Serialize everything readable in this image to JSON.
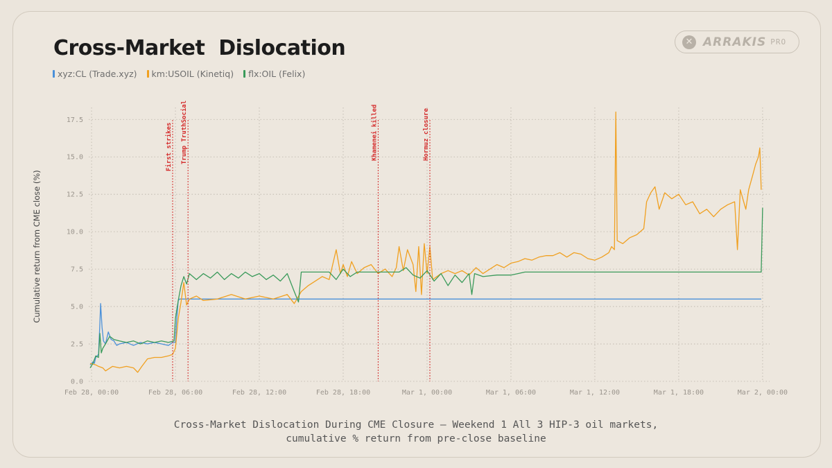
{
  "title": "Cross-Market  Dislocation",
  "brand": {
    "name": "ARRAKIS",
    "tier": "PRO",
    "icon": "close-x-icon"
  },
  "legend": [
    {
      "label": "xyz:CL (Trade.xyz)",
      "color": "#4a90d9"
    },
    {
      "label": "km:USOIL (Kinetiq)",
      "color": "#f0a020"
    },
    {
      "label": "flx:OIL (Felix)",
      "color": "#3a9a5a"
    }
  ],
  "caption": {
    "line1": "Cross-Market Dislocation During CME Closure — Weekend 1 All 3 HIP-3 oil markets,",
    "line2": "cumulative % return from pre-close baseline"
  },
  "chart_data": {
    "type": "line",
    "title": "Cross-Market  Dislocation",
    "xlabel": "",
    "ylabel": "Cumulative return from CME close (%)",
    "xlim": [
      -0.2,
      48.5
    ],
    "ylim": [
      0,
      18.3
    ],
    "x_unit": "hours since Feb 28, 00:00",
    "x_ticks": [
      {
        "t": 0,
        "label": "Feb 28, 00:00"
      },
      {
        "t": 6,
        "label": "Feb 28, 06:00"
      },
      {
        "t": 12,
        "label": "Feb 28, 12:00"
      },
      {
        "t": 18,
        "label": "Feb 28, 18:00"
      },
      {
        "t": 24,
        "label": "Mar 1, 00:00"
      },
      {
        "t": 30,
        "label": "Mar 1, 06:00"
      },
      {
        "t": 36,
        "label": "Mar 1, 12:00"
      },
      {
        "t": 42,
        "label": "Mar 1, 18:00"
      },
      {
        "t": 48,
        "label": "Mar 2, 00:00"
      }
    ],
    "y_ticks": [
      0.0,
      2.5,
      5.0,
      7.5,
      10.0,
      12.5,
      15.0,
      17.5
    ],
    "y_tick_labels": [
      "0.0",
      "2.5",
      "5.0",
      "7.5",
      "10.0",
      "12.5",
      "15.0",
      "17.5"
    ],
    "grid": true,
    "legend_position": "top-left",
    "events": [
      {
        "t": 5.8,
        "label": "First strikes"
      },
      {
        "t": 6.9,
        "label": "Trump TruthSocial"
      },
      {
        "t": 20.5,
        "label": "Khamenei killed"
      },
      {
        "t": 24.2,
        "label": "Hormuz closure"
      }
    ],
    "series": [
      {
        "name": "xyz:CL (Trade.xyz)",
        "color": "#4a90d9",
        "points": [
          [
            -0.1,
            1.1
          ],
          [
            0.1,
            1.3
          ],
          [
            0.2,
            1.2
          ],
          [
            0.3,
            1.6
          ],
          [
            0.5,
            1.8
          ],
          [
            0.6,
            3.9
          ],
          [
            0.65,
            5.2
          ],
          [
            0.75,
            3.6
          ],
          [
            0.85,
            2.7
          ],
          [
            1.0,
            2.5
          ],
          [
            1.2,
            3.3
          ],
          [
            1.4,
            2.8
          ],
          [
            1.6,
            2.7
          ],
          [
            1.8,
            2.4
          ],
          [
            2.0,
            2.5
          ],
          [
            2.5,
            2.6
          ],
          [
            3.0,
            2.4
          ],
          [
            3.5,
            2.6
          ],
          [
            4.0,
            2.5
          ],
          [
            4.5,
            2.6
          ],
          [
            5.0,
            2.5
          ],
          [
            5.5,
            2.4
          ],
          [
            5.8,
            2.6
          ],
          [
            6.0,
            2.6
          ],
          [
            6.1,
            4.2
          ],
          [
            6.2,
            5.4
          ],
          [
            6.3,
            5.5
          ],
          [
            10,
            5.5
          ],
          [
            20,
            5.5
          ],
          [
            30,
            5.5
          ],
          [
            40,
            5.5
          ],
          [
            47.9,
            5.5
          ]
        ]
      },
      {
        "name": "km:USOIL (Kinetiq)",
        "color": "#f0a020",
        "points": [
          [
            -0.1,
            1.2
          ],
          [
            0.3,
            1.1
          ],
          [
            0.5,
            1.0
          ],
          [
            0.8,
            0.9
          ],
          [
            1.0,
            0.7
          ],
          [
            1.5,
            1.0
          ],
          [
            2.0,
            0.9
          ],
          [
            2.5,
            1.0
          ],
          [
            3.0,
            0.9
          ],
          [
            3.3,
            0.6
          ],
          [
            3.6,
            1.0
          ],
          [
            4.0,
            1.5
          ],
          [
            4.5,
            1.6
          ],
          [
            5.0,
            1.6
          ],
          [
            5.5,
            1.7
          ],
          [
            5.8,
            1.8
          ],
          [
            6.0,
            2.2
          ],
          [
            6.2,
            4.2
          ],
          [
            6.4,
            5.3
          ],
          [
            6.6,
            6.6
          ],
          [
            6.8,
            5.1
          ],
          [
            7.0,
            5.5
          ],
          [
            7.5,
            5.7
          ],
          [
            8.0,
            5.4
          ],
          [
            9.0,
            5.5
          ],
          [
            10.0,
            5.8
          ],
          [
            11.0,
            5.5
          ],
          [
            12.0,
            5.7
          ],
          [
            13.0,
            5.5
          ],
          [
            14.0,
            5.8
          ],
          [
            14.5,
            5.2
          ],
          [
            15.0,
            6.0
          ],
          [
            15.5,
            6.4
          ],
          [
            16.0,
            6.7
          ],
          [
            16.5,
            7.0
          ],
          [
            17.0,
            6.8
          ],
          [
            17.5,
            8.8
          ],
          [
            17.8,
            7.2
          ],
          [
            18.0,
            7.8
          ],
          [
            18.3,
            7.0
          ],
          [
            18.6,
            8.0
          ],
          [
            19.0,
            7.2
          ],
          [
            19.5,
            7.6
          ],
          [
            20.0,
            7.8
          ],
          [
            20.5,
            7.2
          ],
          [
            21.0,
            7.5
          ],
          [
            21.5,
            7.0
          ],
          [
            21.8,
            7.6
          ],
          [
            22.0,
            9.0
          ],
          [
            22.3,
            7.4
          ],
          [
            22.6,
            8.8
          ],
          [
            23.0,
            7.8
          ],
          [
            23.2,
            6.0
          ],
          [
            23.4,
            9.0
          ],
          [
            23.6,
            5.8
          ],
          [
            23.8,
            9.2
          ],
          [
            24.0,
            7.2
          ],
          [
            24.2,
            9.0
          ],
          [
            24.4,
            6.8
          ],
          [
            25.0,
            7.2
          ],
          [
            25.5,
            7.4
          ],
          [
            26.0,
            7.2
          ],
          [
            26.5,
            7.4
          ],
          [
            27.0,
            7.1
          ],
          [
            27.5,
            7.6
          ],
          [
            28.0,
            7.2
          ],
          [
            28.5,
            7.5
          ],
          [
            29.0,
            7.8
          ],
          [
            29.5,
            7.6
          ],
          [
            30.0,
            7.9
          ],
          [
            30.5,
            8.0
          ],
          [
            31.0,
            8.2
          ],
          [
            31.5,
            8.1
          ],
          [
            32.0,
            8.3
          ],
          [
            32.5,
            8.4
          ],
          [
            33.0,
            8.4
          ],
          [
            33.5,
            8.6
          ],
          [
            34.0,
            8.3
          ],
          [
            34.5,
            8.6
          ],
          [
            35.0,
            8.5
          ],
          [
            35.5,
            8.2
          ],
          [
            36.0,
            8.1
          ],
          [
            36.5,
            8.3
          ],
          [
            37.0,
            8.6
          ],
          [
            37.2,
            9.0
          ],
          [
            37.4,
            8.8
          ],
          [
            37.5,
            18.0
          ],
          [
            37.6,
            9.4
          ],
          [
            38.0,
            9.2
          ],
          [
            38.5,
            9.6
          ],
          [
            39.0,
            9.8
          ],
          [
            39.5,
            10.2
          ],
          [
            39.7,
            12.0
          ],
          [
            40.0,
            12.6
          ],
          [
            40.3,
            13.0
          ],
          [
            40.6,
            11.5
          ],
          [
            41.0,
            12.6
          ],
          [
            41.5,
            12.2
          ],
          [
            42.0,
            12.5
          ],
          [
            42.5,
            11.8
          ],
          [
            43.0,
            12.0
          ],
          [
            43.5,
            11.2
          ],
          [
            44.0,
            11.5
          ],
          [
            44.5,
            11.0
          ],
          [
            45.0,
            11.5
          ],
          [
            45.5,
            11.8
          ],
          [
            46.0,
            12.0
          ],
          [
            46.2,
            8.8
          ],
          [
            46.4,
            12.8
          ],
          [
            46.8,
            11.5
          ],
          [
            47.0,
            12.8
          ],
          [
            47.3,
            13.8
          ],
          [
            47.5,
            14.5
          ],
          [
            47.7,
            15.0
          ],
          [
            47.8,
            15.6
          ],
          [
            47.9,
            12.8
          ]
        ]
      },
      {
        "name": "flx:OIL (Felix)",
        "color": "#3a9a5a",
        "points": [
          [
            -0.1,
            0.9
          ],
          [
            0.1,
            1.2
          ],
          [
            0.3,
            1.7
          ],
          [
            0.5,
            1.6
          ],
          [
            0.6,
            3.2
          ],
          [
            0.7,
            1.9
          ],
          [
            0.8,
            2.2
          ],
          [
            1.0,
            2.5
          ],
          [
            1.3,
            3.0
          ],
          [
            1.6,
            2.8
          ],
          [
            2.0,
            2.7
          ],
          [
            2.5,
            2.6
          ],
          [
            3.0,
            2.7
          ],
          [
            3.5,
            2.5
          ],
          [
            4.0,
            2.7
          ],
          [
            4.5,
            2.6
          ],
          [
            5.0,
            2.7
          ],
          [
            5.5,
            2.6
          ],
          [
            5.9,
            2.7
          ],
          [
            6.0,
            4.2
          ],
          [
            6.2,
            5.4
          ],
          [
            6.4,
            6.4
          ],
          [
            6.6,
            7.0
          ],
          [
            6.8,
            6.5
          ],
          [
            7.0,
            7.2
          ],
          [
            7.5,
            6.8
          ],
          [
            8.0,
            7.2
          ],
          [
            8.5,
            6.9
          ],
          [
            9.0,
            7.3
          ],
          [
            9.5,
            6.8
          ],
          [
            10.0,
            7.2
          ],
          [
            10.5,
            6.9
          ],
          [
            11.0,
            7.3
          ],
          [
            11.5,
            7.0
          ],
          [
            12.0,
            7.2
          ],
          [
            12.5,
            6.8
          ],
          [
            13.0,
            7.1
          ],
          [
            13.5,
            6.7
          ],
          [
            14.0,
            7.2
          ],
          [
            14.5,
            6.0
          ],
          [
            14.8,
            5.3
          ],
          [
            15.0,
            7.3
          ],
          [
            16.0,
            7.3
          ],
          [
            17.0,
            7.3
          ],
          [
            17.5,
            6.8
          ],
          [
            18.0,
            7.5
          ],
          [
            18.5,
            7.0
          ],
          [
            19.0,
            7.3
          ],
          [
            20.0,
            7.3
          ],
          [
            21.0,
            7.3
          ],
          [
            22.0,
            7.3
          ],
          [
            22.5,
            7.6
          ],
          [
            23.0,
            7.1
          ],
          [
            23.5,
            6.9
          ],
          [
            24.0,
            7.4
          ],
          [
            24.5,
            6.7
          ],
          [
            25.0,
            7.2
          ],
          [
            25.5,
            6.4
          ],
          [
            26.0,
            7.1
          ],
          [
            26.5,
            6.6
          ],
          [
            27.0,
            7.2
          ],
          [
            27.2,
            5.8
          ],
          [
            27.4,
            7.2
          ],
          [
            28.0,
            7.0
          ],
          [
            29.0,
            7.1
          ],
          [
            30.0,
            7.1
          ],
          [
            30.5,
            7.2
          ],
          [
            31.0,
            7.3
          ],
          [
            35.0,
            7.3
          ],
          [
            40.0,
            7.3
          ],
          [
            47.9,
            7.3
          ],
          [
            48.0,
            11.6
          ]
        ]
      }
    ]
  }
}
